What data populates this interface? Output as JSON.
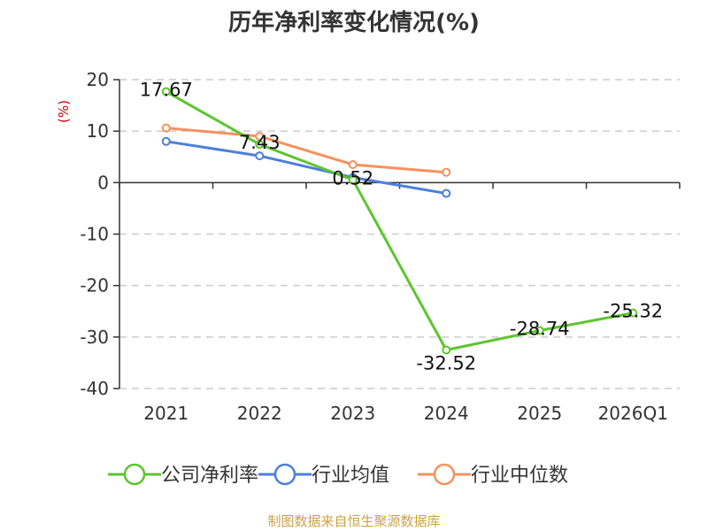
{
  "chart_data": {
    "type": "line",
    "title": "历年净利率变化情况(%)",
    "ylabel": "(%)",
    "categories": [
      "2021",
      "2022",
      "2023",
      "2024",
      "2025",
      "2026Q1"
    ],
    "ylim": [
      -40,
      20
    ],
    "yticks": [
      20,
      10,
      0,
      -10,
      -20,
      -30,
      -40
    ],
    "grid": true,
    "legend_position": "bottom",
    "series": [
      {
        "name": "公司净利率",
        "color": "#5cc52d",
        "values": [
          17.67,
          7.43,
          0.52,
          -32.52,
          -28.74,
          -25.32
        ],
        "labels": [
          "17.67",
          "7.43",
          "0.52",
          "-32.52",
          "-28.74",
          "-25.32"
        ]
      },
      {
        "name": "行业均值",
        "color": "#4d7fd9",
        "values": [
          8.0,
          5.2,
          1.0,
          -2.1,
          null,
          null
        ]
      },
      {
        "name": "行业中位数",
        "color": "#f4925e",
        "values": [
          10.6,
          9.0,
          3.5,
          2.0,
          null,
          null
        ]
      }
    ],
    "source": "制图数据来自恒生聚源数据库"
  }
}
